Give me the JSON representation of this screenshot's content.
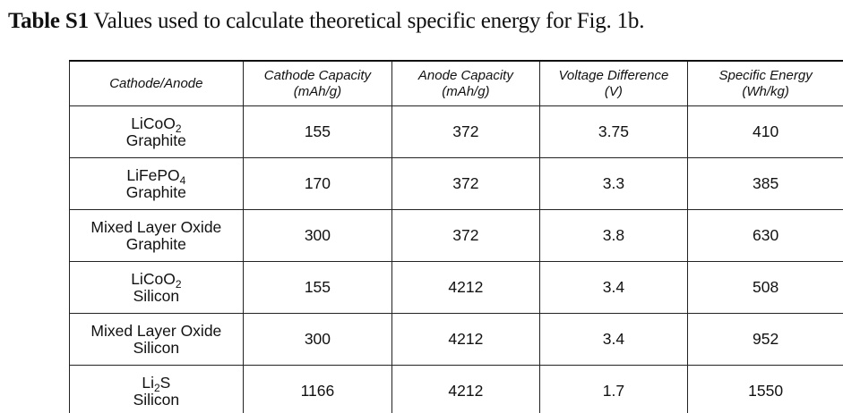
{
  "caption": {
    "label": "Table S1",
    "text": " Values used to calculate theoretical specific energy for Fig. 1b."
  },
  "table": {
    "headers": [
      {
        "line1": "Cathode/Anode",
        "line2": ""
      },
      {
        "line1": "Cathode Capacity",
        "line2": "(mAh/g)"
      },
      {
        "line1": "Anode Capacity",
        "line2": "(mAh/g)"
      },
      {
        "line1": "Voltage Difference",
        "line2": "(V)"
      },
      {
        "line1": "Specific Energy",
        "line2": "(Wh/kg)"
      }
    ],
    "rows": [
      {
        "cathode": {
          "base": "LiCoO",
          "sub": "2",
          "tail": ""
        },
        "anode": "Graphite",
        "cathode_capacity": "155",
        "anode_capacity": "372",
        "voltage": "3.75",
        "specific_energy": "410"
      },
      {
        "cathode": {
          "base": "LiFePO",
          "sub": "4",
          "tail": ""
        },
        "anode": "Graphite",
        "cathode_capacity": "170",
        "anode_capacity": "372",
        "voltage": "3.3",
        "specific_energy": "385"
      },
      {
        "cathode": {
          "base": "Mixed Layer Oxide",
          "sub": "",
          "tail": ""
        },
        "anode": "Graphite",
        "cathode_capacity": "300",
        "anode_capacity": "372",
        "voltage": "3.8",
        "specific_energy": "630"
      },
      {
        "cathode": {
          "base": "LiCoO",
          "sub": "2",
          "tail": ""
        },
        "anode": "Silicon",
        "cathode_capacity": "155",
        "anode_capacity": "4212",
        "voltage": "3.4",
        "specific_energy": "508"
      },
      {
        "cathode": {
          "base": "Mixed Layer Oxide",
          "sub": "",
          "tail": ""
        },
        "anode": "Silicon",
        "cathode_capacity": "300",
        "anode_capacity": "4212",
        "voltage": "3.4",
        "specific_energy": "952"
      },
      {
        "cathode": {
          "base": "Li",
          "sub": "2",
          "tail": "S"
        },
        "anode": "Silicon",
        "cathode_capacity": "1166",
        "anode_capacity": "4212",
        "voltage": "1.7",
        "specific_energy": "1550"
      }
    ]
  }
}
